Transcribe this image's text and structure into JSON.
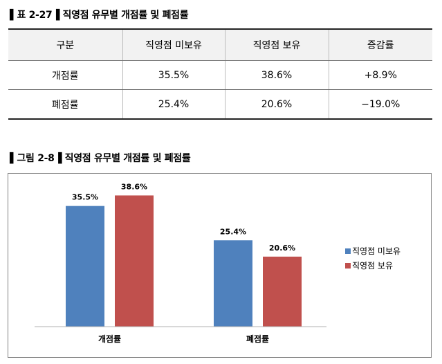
{
  "table_caption": "▌표 2-27▐ 직영점 유무별 개점률 및 폐점률",
  "figure_caption": "▌그림 2-8▐ 직영점 유무별 개점률 및 폐점률",
  "table": {
    "headers": [
      "구분",
      "직영점 미보유",
      "직영점 보유",
      "증감률"
    ],
    "rows": [
      [
        "개점률",
        "35.5%",
        "38.6%",
        "+8.9%"
      ],
      [
        "폐점률",
        "25.4%",
        "20.6%",
        "−19.0%"
      ]
    ]
  },
  "colors": {
    "series_no_store": "#4f81bd",
    "series_store": "#c0504d"
  },
  "chart_data": {
    "type": "bar",
    "categories": [
      "개점률",
      "폐점률"
    ],
    "series": [
      {
        "name": "직영점 미보유",
        "values": [
          35.5,
          25.4
        ],
        "labels": [
          "35.5%",
          "25.4%"
        ]
      },
      {
        "name": "직영점 보유",
        "values": [
          38.6,
          20.6
        ],
        "labels": [
          "38.6%",
          "20.6%"
        ]
      }
    ],
    "ylim": [
      0,
      45
    ],
    "grid": false,
    "legend_position": "right"
  }
}
